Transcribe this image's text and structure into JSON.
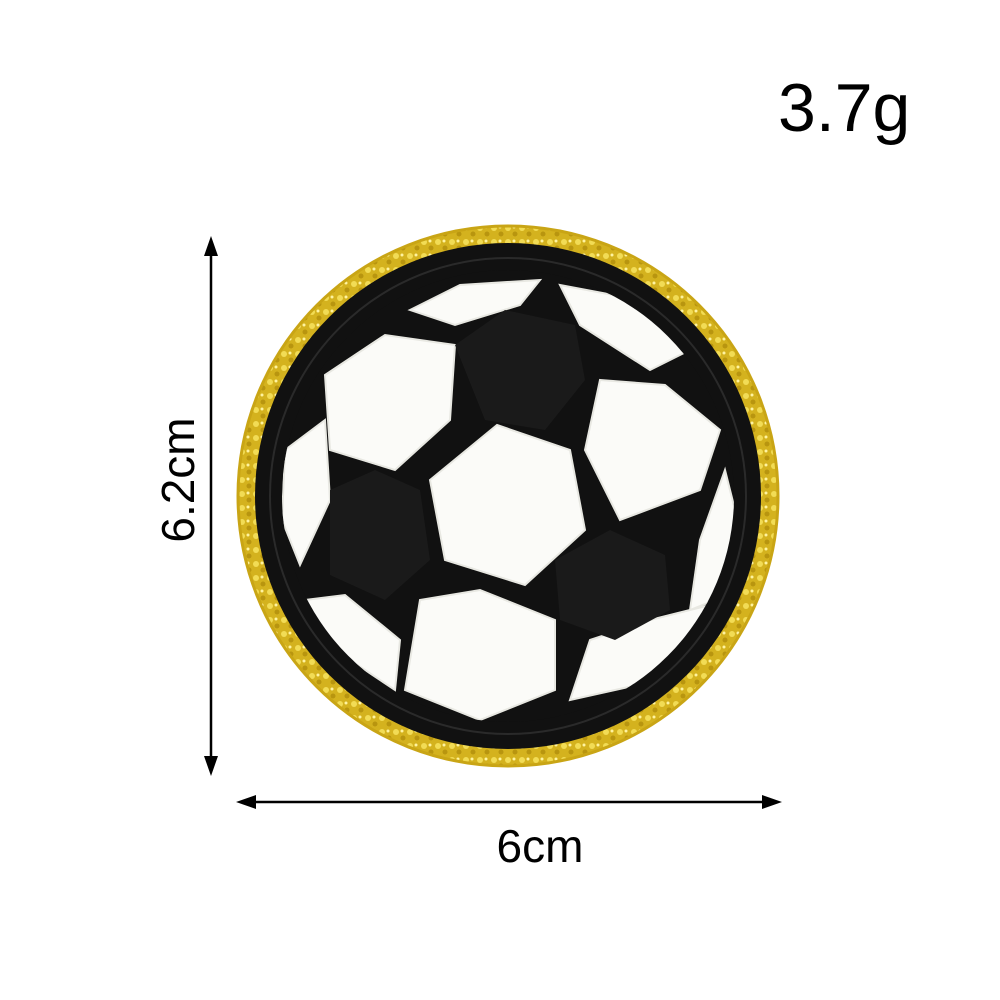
{
  "product": {
    "name_icon": "soccer-ball-patch",
    "weight": "3.7g",
    "height": "6.2cm",
    "width": "6cm"
  },
  "colors": {
    "sequin_border": "#d4b21e",
    "sequin_highlight": "#f2dc55",
    "embroidery_black": "#111111",
    "chenille_white": "#fbfbf8",
    "ink": "#000000"
  }
}
